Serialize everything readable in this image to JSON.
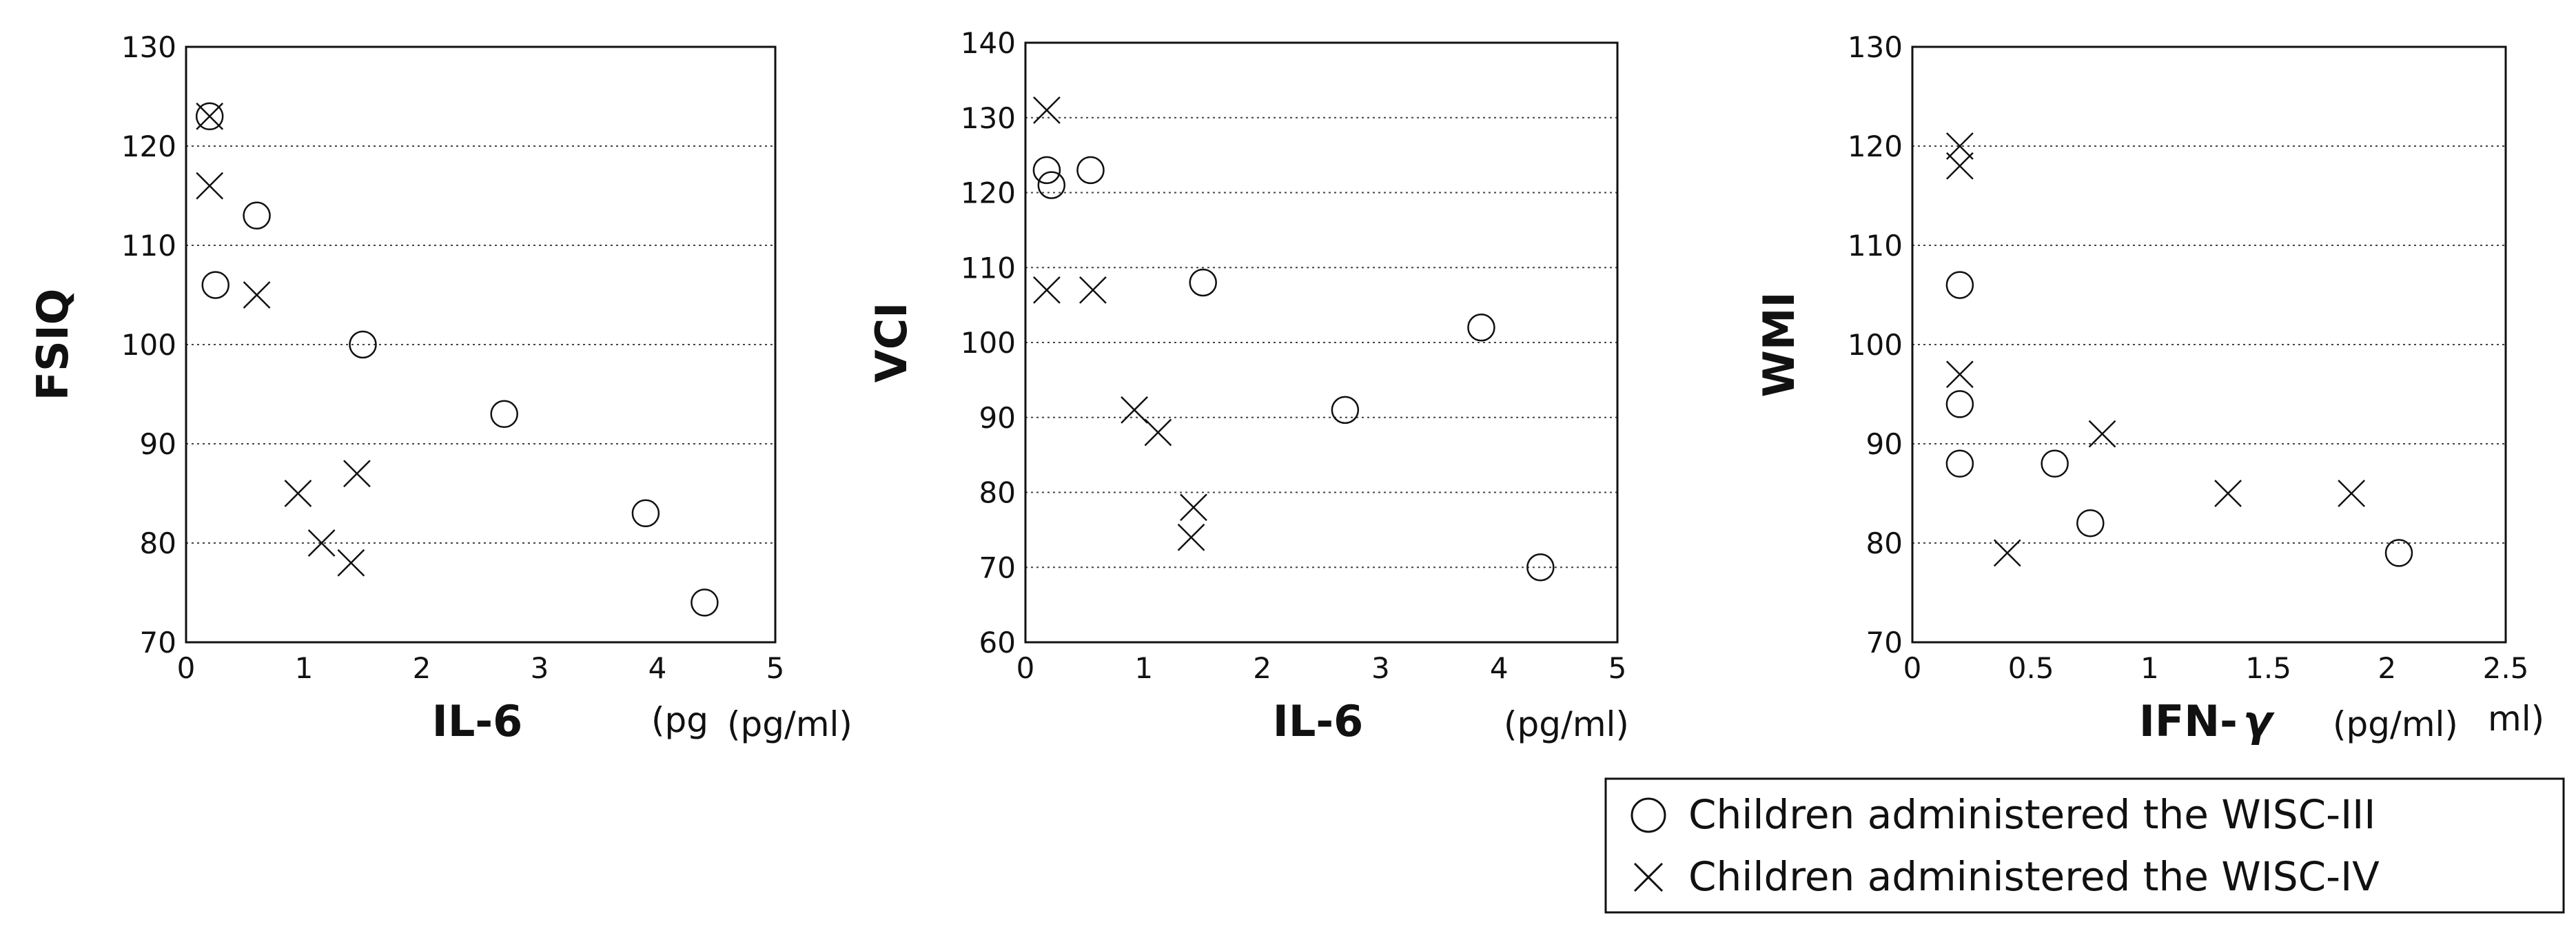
{
  "chart_data": [
    {
      "type": "scatter",
      "xlabel": "IL-6",
      "unit_label": "(pg/ml)",
      "unit_overlap": "(pg",
      "ylabel": "FSIQ",
      "xlim": [
        0,
        5
      ],
      "ylim": [
        70,
        130
      ],
      "xticks": [
        "0",
        "1",
        "2",
        "3",
        "4",
        "5"
      ],
      "yticks": [
        "70",
        "80",
        "90",
        "100",
        "110",
        "120",
        "130"
      ],
      "grid": "horizontal dotted",
      "series": [
        {
          "name": "Children administered the WISC-III",
          "marker": "circle",
          "points": [
            [
              0.2,
              123
            ],
            [
              0.6,
              113
            ],
            [
              0.25,
              106
            ],
            [
              1.5,
              100
            ],
            [
              2.7,
              93
            ],
            [
              3.9,
              83
            ],
            [
              4.4,
              74
            ]
          ]
        },
        {
          "name": "Children administered the WISC-IV",
          "marker": "cross",
          "points": [
            [
              0.2,
              123
            ],
            [
              0.2,
              116
            ],
            [
              0.6,
              105
            ],
            [
              0.95,
              85
            ],
            [
              1.15,
              80
            ],
            [
              1.45,
              87
            ],
            [
              1.4,
              78
            ]
          ]
        }
      ]
    },
    {
      "type": "scatter",
      "xlabel": "IL-6",
      "unit_label": "(pg/ml)",
      "ylabel": "VCI",
      "xlim": [
        0,
        5
      ],
      "ylim": [
        60,
        140
      ],
      "xticks": [
        "0",
        "1",
        "2",
        "3",
        "4",
        "5"
      ],
      "yticks": [
        "60",
        "70",
        "80",
        "90",
        "100",
        "110",
        "120",
        "130",
        "140"
      ],
      "grid": "horizontal dotted",
      "series": [
        {
          "name": "Children administered the WISC-III",
          "marker": "circle",
          "points": [
            [
              0.18,
              123
            ],
            [
              0.22,
              121
            ],
            [
              0.55,
              123
            ],
            [
              1.5,
              108
            ],
            [
              2.7,
              91
            ],
            [
              3.85,
              102
            ],
            [
              4.35,
              70
            ]
          ]
        },
        {
          "name": "Children administered the WISC-IV",
          "marker": "cross",
          "points": [
            [
              0.18,
              131
            ],
            [
              0.18,
              107
            ],
            [
              0.57,
              107
            ],
            [
              0.92,
              91
            ],
            [
              1.12,
              88
            ],
            [
              1.42,
              78
            ],
            [
              1.4,
              74
            ]
          ]
        }
      ]
    },
    {
      "type": "scatter",
      "xlabel": "IFN-",
      "xlabel_symbol": "γ",
      "unit_label": "(pg/ml)",
      "unit_tail": "ml)",
      "ylabel": "WMI",
      "xlim": [
        0,
        2.5
      ],
      "ylim": [
        70,
        130
      ],
      "xticks": [
        "0",
        "0.5",
        "1",
        "1.5",
        "2",
        "2.5"
      ],
      "yticks": [
        "70",
        "80",
        "90",
        "100",
        "110",
        "120",
        "130"
      ],
      "grid": "horizontal dotted",
      "series": [
        {
          "name": "Children administered the WISC-III",
          "marker": "circle",
          "points": [
            [
              0.2,
              106
            ],
            [
              0.2,
              94
            ],
            [
              0.2,
              88
            ],
            [
              0.6,
              88
            ],
            [
              0.75,
              82
            ],
            [
              2.05,
              79
            ]
          ]
        },
        {
          "name": "Children administered the WISC-IV",
          "marker": "cross",
          "points": [
            [
              0.2,
              120
            ],
            [
              0.2,
              118
            ],
            [
              0.2,
              97
            ],
            [
              0.4,
              79
            ],
            [
              0.8,
              91
            ],
            [
              1.33,
              85
            ],
            [
              1.85,
              85
            ]
          ]
        }
      ]
    }
  ],
  "legend": {
    "items": [
      {
        "symbol": "circle",
        "label": "Children administered the WISC-III"
      },
      {
        "symbol": "cross",
        "label": "Children administered the WISC-IV"
      }
    ]
  }
}
